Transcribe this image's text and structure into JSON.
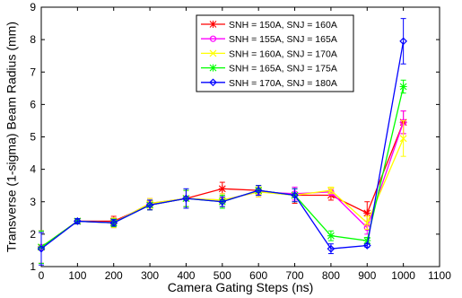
{
  "chart_data": {
    "type": "line",
    "title": "",
    "xlabel": "Camera Gating Steps (ns)",
    "ylabel": "Transverse (1-sigma) Beam Radius (mm)",
    "xlim": [
      0,
      1100
    ],
    "ylim": [
      1,
      9
    ],
    "xticks": [
      "0",
      "100",
      "200",
      "300",
      "400",
      "500",
      "600",
      "700",
      "800",
      "900",
      "1000",
      "1100"
    ],
    "yticks": [
      "1",
      "2",
      "3",
      "4",
      "5",
      "6",
      "7",
      "8",
      "9"
    ],
    "grid": false,
    "legend_position": "top-right",
    "x": [
      0,
      100,
      200,
      300,
      400,
      500,
      600,
      700,
      800,
      900,
      1000
    ],
    "series": [
      {
        "name": "SNH = 150A, SNJ = 160A",
        "color": "#ff0000",
        "marker": "star",
        "values": [
          1.6,
          2.4,
          2.4,
          2.9,
          3.1,
          3.4,
          3.35,
          3.2,
          3.2,
          2.65,
          5.45
        ],
        "errors": [
          0.5,
          0.08,
          0.15,
          0.15,
          0.25,
          0.2,
          0.15,
          0.25,
          0.15,
          0.35,
          0.35
        ]
      },
      {
        "name": "SNH = 155A, SNJ = 165A",
        "color": "#ff00ff",
        "marker": "circle",
        "values": [
          1.6,
          2.4,
          2.35,
          2.95,
          3.1,
          3.05,
          3.3,
          3.25,
          3.3,
          2.2,
          5.45
        ],
        "errors": [
          0.5,
          0.08,
          0.15,
          0.15,
          0.25,
          0.2,
          0.15,
          0.2,
          0.1,
          0.2,
          0.35
        ]
      },
      {
        "name": "SNH = 160A, SNJ = 170A",
        "color": "#ffff00",
        "marker": "x",
        "values": [
          1.6,
          2.4,
          2.35,
          2.95,
          3.1,
          3.05,
          3.3,
          3.2,
          3.35,
          2.35,
          4.95
        ],
        "errors": [
          0.5,
          0.08,
          0.15,
          0.15,
          0.25,
          0.2,
          0.15,
          0.2,
          0.1,
          0.2,
          0.55
        ]
      },
      {
        "name": "SNH = 165A, SNJ = 175A",
        "color": "#00ff00",
        "marker": "star",
        "values": [
          1.6,
          2.4,
          2.35,
          2.9,
          3.1,
          3.0,
          3.35,
          3.2,
          1.95,
          1.8,
          6.55
        ],
        "errors": [
          0.5,
          0.08,
          0.12,
          0.15,
          0.25,
          0.2,
          0.15,
          0.2,
          0.15,
          0.1,
          0.2
        ]
      },
      {
        "name": "SNH = 170A, SNJ = 180A",
        "color": "#0000ff",
        "marker": "diamond",
        "values": [
          1.55,
          2.4,
          2.35,
          2.9,
          3.1,
          3.0,
          3.35,
          3.2,
          1.55,
          1.65,
          7.95
        ],
        "errors": [
          0.5,
          0.08,
          0.1,
          0.15,
          0.3,
          0.15,
          0.15,
          0.2,
          0.15,
          0.05,
          0.7
        ]
      }
    ]
  }
}
